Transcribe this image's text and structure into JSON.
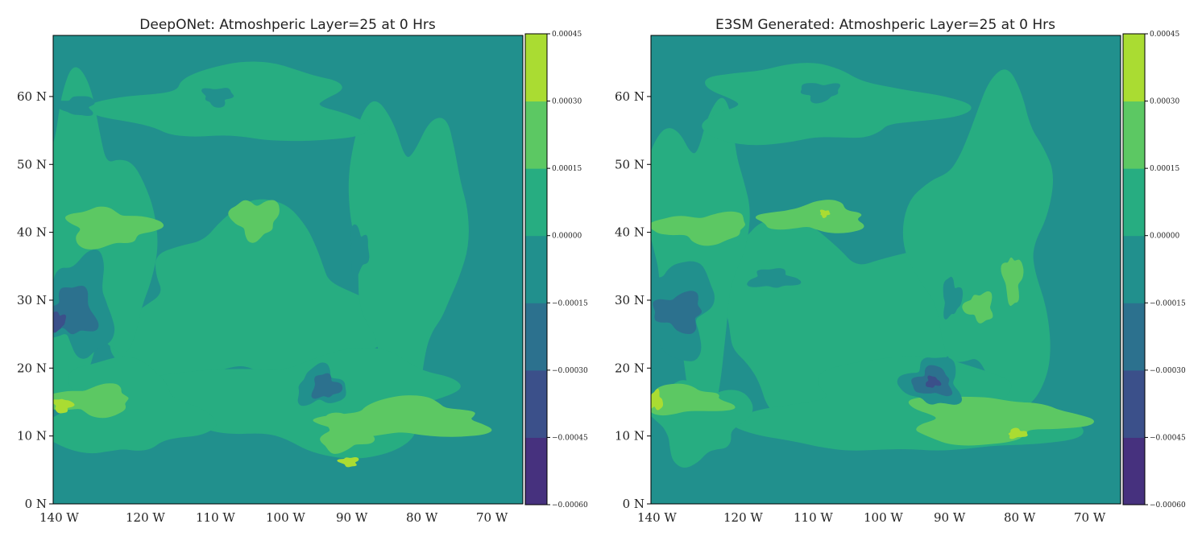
{
  "chart_data": [
    {
      "type": "heatmap",
      "title": "DeepONet: Atmoshperic Layer=25 at 0 Hrs",
      "x_tick_labels": [
        "140 W",
        "120 W",
        "110 W",
        "100 W",
        "90 W",
        "80 W",
        "70 W"
      ],
      "y_tick_labels": [
        "0 N",
        "10 N",
        "20 N",
        "30 N",
        "40 N",
        "50 N",
        "60 N"
      ],
      "y_ticks": [
        0,
        10,
        20,
        30,
        40,
        50,
        60
      ],
      "ylim": [
        0,
        69
      ],
      "colorbar": {
        "levels": [
          -0.0006,
          -0.00045,
          -0.0003,
          -0.00015,
          0.0,
          0.00015,
          0.0003,
          0.00045
        ],
        "tick_labels": [
          "−0.00060",
          "−0.00045",
          "−0.00030",
          "−0.00015",
          "0.00000",
          "0.00015",
          "0.00030",
          "0.00045"
        ],
        "colors": [
          "#46317e",
          "#3b508a",
          "#2c718e",
          "#21908d",
          "#27ad81",
          "#5cc863",
          "#aadc32"
        ]
      },
      "features": [
        {
          "band": 4,
          "x": 0.42,
          "y": 0.58,
          "rx": 0.26,
          "ry": 0.18
        },
        {
          "band": 4,
          "x": 0.08,
          "y": 0.45,
          "rx": 0.12,
          "ry": 0.3
        },
        {
          "band": 4,
          "x": 0.75,
          "y": 0.45,
          "rx": 0.12,
          "ry": 0.3
        },
        {
          "band": 4,
          "x": 0.55,
          "y": 0.78,
          "rx": 0.3,
          "ry": 0.1
        },
        {
          "band": 4,
          "x": 0.4,
          "y": 0.15,
          "rx": 0.25,
          "ry": 0.08
        },
        {
          "band": 4,
          "x": 0.15,
          "y": 0.8,
          "rx": 0.15,
          "ry": 0.1
        },
        {
          "band": 5,
          "x": 0.12,
          "y": 0.41,
          "rx": 0.09,
          "ry": 0.04
        },
        {
          "band": 5,
          "x": 0.43,
          "y": 0.39,
          "rx": 0.05,
          "ry": 0.04
        },
        {
          "band": 5,
          "x": 0.08,
          "y": 0.78,
          "rx": 0.09,
          "ry": 0.03
        },
        {
          "band": 5,
          "x": 0.75,
          "y": 0.82,
          "rx": 0.17,
          "ry": 0.04
        },
        {
          "band": 5,
          "x": 0.62,
          "y": 0.85,
          "rx": 0.05,
          "ry": 0.04
        },
        {
          "band": 6,
          "x": 0.02,
          "y": 0.79,
          "rx": 0.02,
          "ry": 0.015
        },
        {
          "band": 6,
          "x": 0.63,
          "y": 0.91,
          "rx": 0.02,
          "ry": 0.01
        },
        {
          "band": 3,
          "x": 0.05,
          "y": 0.58,
          "rx": 0.08,
          "ry": 0.1
        },
        {
          "band": 3,
          "x": 0.57,
          "y": 0.75,
          "rx": 0.05,
          "ry": 0.04
        },
        {
          "band": 3,
          "x": 0.65,
          "y": 0.46,
          "rx": 0.02,
          "ry": 0.05
        },
        {
          "band": 3,
          "x": 0.35,
          "y": 0.13,
          "rx": 0.03,
          "ry": 0.02
        },
        {
          "band": 3,
          "x": 0.05,
          "y": 0.15,
          "rx": 0.04,
          "ry": 0.02
        },
        {
          "band": 2,
          "x": 0.04,
          "y": 0.59,
          "rx": 0.05,
          "ry": 0.05
        },
        {
          "band": 2,
          "x": 0.58,
          "y": 0.75,
          "rx": 0.03,
          "ry": 0.025
        },
        {
          "band": 1,
          "x": 0.01,
          "y": 0.61,
          "rx": 0.015,
          "ry": 0.02
        }
      ]
    },
    {
      "type": "heatmap",
      "title": "E3SM Generated: Atmoshperic Layer=25 at 0 Hrs",
      "x_tick_labels": [
        "140 W",
        "120 W",
        "110 W",
        "100 W",
        "90 W",
        "80 W",
        "70 W"
      ],
      "y_tick_labels": [
        "0 N",
        "10 N",
        "20 N",
        "30 N",
        "40 N",
        "50 N",
        "60 N"
      ],
      "y_ticks": [
        0,
        10,
        20,
        30,
        40,
        50,
        60
      ],
      "ylim": [
        0,
        69
      ],
      "colorbar": {
        "levels": [
          -0.0006,
          -0.00045,
          -0.0003,
          -0.00015,
          0.0,
          0.00015,
          0.0003,
          0.00045
        ],
        "tick_labels": [
          "−0.00060",
          "−0.00045",
          "−0.00030",
          "−0.00015",
          "0.00000",
          "0.00015",
          "0.00030",
          "0.00045"
        ],
        "colors": [
          "#46317e",
          "#3b508a",
          "#2c718e",
          "#21908d",
          "#27ad81",
          "#5cc863",
          "#aadc32"
        ]
      },
      "features": [
        {
          "band": 4,
          "x": 0.4,
          "y": 0.6,
          "rx": 0.28,
          "ry": 0.18
        },
        {
          "band": 4,
          "x": 0.1,
          "y": 0.45,
          "rx": 0.1,
          "ry": 0.3
        },
        {
          "band": 4,
          "x": 0.72,
          "y": 0.45,
          "rx": 0.14,
          "ry": 0.32
        },
        {
          "band": 4,
          "x": 0.55,
          "y": 0.8,
          "rx": 0.3,
          "ry": 0.1
        },
        {
          "band": 4,
          "x": 0.35,
          "y": 0.15,
          "rx": 0.25,
          "ry": 0.08
        },
        {
          "band": 4,
          "x": 0.1,
          "y": 0.82,
          "rx": 0.1,
          "ry": 0.08
        },
        {
          "band": 5,
          "x": 0.11,
          "y": 0.41,
          "rx": 0.1,
          "ry": 0.03
        },
        {
          "band": 5,
          "x": 0.35,
          "y": 0.39,
          "rx": 0.11,
          "ry": 0.03
        },
        {
          "band": 5,
          "x": 0.07,
          "y": 0.78,
          "rx": 0.09,
          "ry": 0.03
        },
        {
          "band": 5,
          "x": 0.72,
          "y": 0.82,
          "rx": 0.17,
          "ry": 0.05
        },
        {
          "band": 5,
          "x": 0.77,
          "y": 0.52,
          "rx": 0.02,
          "ry": 0.05
        },
        {
          "band": 5,
          "x": 0.7,
          "y": 0.58,
          "rx": 0.03,
          "ry": 0.03
        },
        {
          "band": 6,
          "x": 0.01,
          "y": 0.78,
          "rx": 0.015,
          "ry": 0.02
        },
        {
          "band": 6,
          "x": 0.78,
          "y": 0.85,
          "rx": 0.02,
          "ry": 0.01
        },
        {
          "band": 6,
          "x": 0.37,
          "y": 0.38,
          "rx": 0.01,
          "ry": 0.008
        },
        {
          "band": 3,
          "x": 0.05,
          "y": 0.58,
          "rx": 0.08,
          "ry": 0.1
        },
        {
          "band": 3,
          "x": 0.6,
          "y": 0.74,
          "rx": 0.06,
          "ry": 0.05
        },
        {
          "band": 3,
          "x": 0.26,
          "y": 0.52,
          "rx": 0.05,
          "ry": 0.02
        },
        {
          "band": 3,
          "x": 0.64,
          "y": 0.56,
          "rx": 0.02,
          "ry": 0.04
        },
        {
          "band": 3,
          "x": 0.36,
          "y": 0.12,
          "rx": 0.04,
          "ry": 0.02
        },
        {
          "band": 2,
          "x": 0.06,
          "y": 0.59,
          "rx": 0.05,
          "ry": 0.04
        },
        {
          "band": 2,
          "x": 0.6,
          "y": 0.74,
          "rx": 0.04,
          "ry": 0.03
        },
        {
          "band": 1,
          "x": 0.6,
          "y": 0.74,
          "rx": 0.015,
          "ry": 0.012
        }
      ]
    }
  ]
}
